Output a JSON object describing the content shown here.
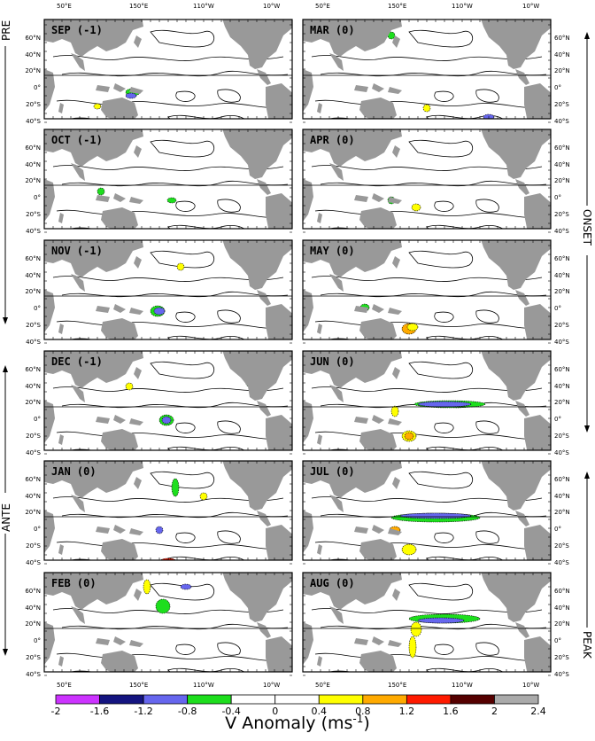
{
  "top_axis_labels": [
    "50°E",
    "150°E",
    "110°W",
    "10°W"
  ],
  "bottom_axis_labels": [
    "50°E",
    "150°E",
    "110°W",
    "10°W"
  ],
  "lat_labels": [
    "60°N",
    "40°N",
    "20°N",
    "0°",
    "20°S",
    "40°S"
  ],
  "side_labels": {
    "pre": "PRE",
    "ante": "ANTE",
    "onset": "ONSET",
    "peak": "PEAK"
  },
  "colorbar": {
    "ticks": [
      "-2",
      "-1.6",
      "-1.2",
      "-0.8",
      "-0.4",
      "0",
      "0.4",
      "0.8",
      "1.2",
      "1.6",
      "2",
      "2.4"
    ],
    "colors": [
      "#cc33ff",
      "#141480",
      "#6666ee",
      "#1dde1d",
      "#ffffff",
      "#ffffff",
      "#ffff00",
      "#ffaa00",
      "#ff1a00",
      "#550000",
      "#aaaaaa"
    ],
    "title": "V Anomaly (ms",
    "title_exponent": "-1",
    "title_close": ")"
  },
  "chart_data": {
    "type": "heatmap",
    "variable": "V Anomaly",
    "units": "ms-1",
    "range": [
      -2,
      2.4
    ],
    "panels": [
      {
        "label": "SEP (-1)"
      },
      {
        "label": "MAR (0)"
      },
      {
        "label": "OCT (-1)"
      },
      {
        "label": "APR (0)"
      },
      {
        "label": "NOV (-1)"
      },
      {
        "label": "MAY (0)"
      },
      {
        "label": "DEC (-1)"
      },
      {
        "label": "JUN (0)"
      },
      {
        "label": "JAN (0)"
      },
      {
        "label": "JUL (0)"
      },
      {
        "label": "FEB (0)"
      },
      {
        "label": "AUG (0)"
      }
    ]
  }
}
